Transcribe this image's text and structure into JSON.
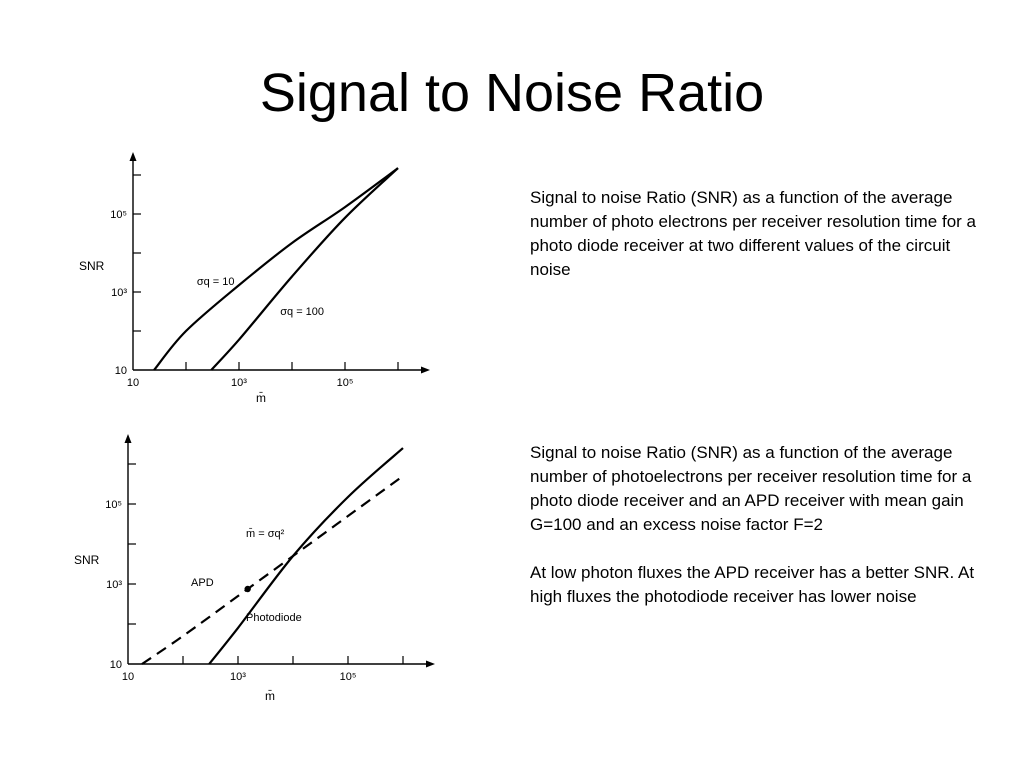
{
  "slide": {
    "title": "Signal to Noise Ratio"
  },
  "descriptions": {
    "top": "Signal to noise Ratio (SNR) as a function of the average number of photo electrons per receiver resolution time for a photo diode receiver at two different values of the circuit noise",
    "bottom_p1": "Signal to noise Ratio (SNR) as a function of the average number of photoelectrons per receiver resolution time for a photo diode receiver and an APD receiver with mean gain G=100 and an excess noise factor F=2",
    "bottom_p2": "At low photon fluxes the APD receiver has a better SNR.  At high fluxes the photodiode receiver has lower noise"
  },
  "chart_data": [
    {
      "type": "line",
      "title": "",
      "xlabel": "m̄",
      "ylabel": "SNR",
      "xscale": "log",
      "yscale": "log",
      "xlim": [
        10,
        10000000
      ],
      "ylim": [
        10,
        10000000
      ],
      "x_ticks": [
        {
          "value": 10,
          "label": "10"
        },
        {
          "value": 1000,
          "label": "10³"
        },
        {
          "value": 100000,
          "label": "10⁵"
        }
      ],
      "y_ticks": [
        {
          "value": 10,
          "label": "10"
        },
        {
          "value": 1000,
          "label": "10³"
        },
        {
          "value": 100000,
          "label": "10⁵"
        }
      ],
      "series": [
        {
          "name": "σq = 10",
          "style": "solid",
          "x": [
            25,
            100,
            1000,
            10000,
            100000,
            1000000
          ],
          "y": [
            10,
            100,
            1500,
            18000,
            150000,
            1500000
          ]
        },
        {
          "name": "σq = 100",
          "style": "solid",
          "x": [
            300,
            1000,
            10000,
            100000,
            1000000
          ],
          "y": [
            10,
            60,
            2500,
            80000,
            1500000
          ]
        }
      ],
      "annotations": [
        {
          "text": "σq = 10",
          "x": 160,
          "y": 1500
        },
        {
          "text": "σq = 100",
          "x": 6000,
          "y": 260
        }
      ]
    },
    {
      "type": "line",
      "title": "",
      "xlabel": "m̄",
      "ylabel": "SNR",
      "xscale": "log",
      "yscale": "log",
      "xlim": [
        10,
        10000000
      ],
      "ylim": [
        10,
        10000000
      ],
      "x_ticks": [
        {
          "value": 10,
          "label": "10"
        },
        {
          "value": 1000,
          "label": "10³"
        },
        {
          "value": 100000,
          "label": "10⁵"
        }
      ],
      "y_ticks": [
        {
          "value": 10,
          "label": "10"
        },
        {
          "value": 1000,
          "label": "10³"
        },
        {
          "value": 100000,
          "label": "10⁵"
        }
      ],
      "series": [
        {
          "name": "APD",
          "style": "dashed",
          "x": [
            18,
            100,
            1000,
            10000,
            100000,
            1000000
          ],
          "y": [
            10,
            50,
            500,
            5000,
            50000,
            500000
          ]
        },
        {
          "name": "Photodiode",
          "style": "solid",
          "x": [
            300,
            1000,
            10000,
            100000,
            1000000
          ],
          "y": [
            10,
            80,
            5000,
            150000,
            2500000
          ]
        }
      ],
      "annotations": [
        {
          "text": "APD",
          "x": 140,
          "y": 900
        },
        {
          "text": "Photodiode",
          "x": 1400,
          "y": 120
        },
        {
          "text": "m̄ = σq²",
          "x": 1400,
          "y": 15000
        }
      ],
      "crossover_point": {
        "x": 1500,
        "y": 750
      }
    }
  ]
}
